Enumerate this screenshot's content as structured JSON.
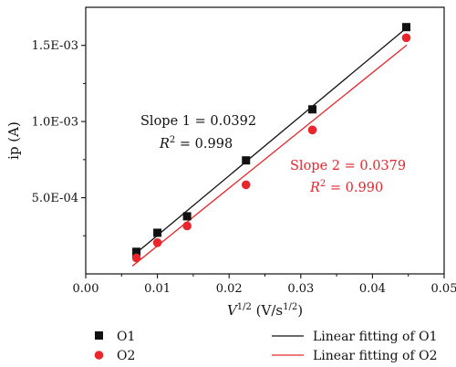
{
  "chart_data": {
    "type": "scatter",
    "xlabel": "V1/2 (V/s1/2)",
    "xlabel_parts": {
      "base": "V",
      "sup": "1/2",
      "unit_open": " (V/s",
      "unit_sup": "1/2",
      "unit_close": ")"
    },
    "ylabel": "ip (A)",
    "xlim": [
      0.0,
      0.05
    ],
    "ylim": [
      0.0,
      0.00175
    ],
    "x_ticks": [
      0.0,
      0.01,
      0.02,
      0.03,
      0.04,
      0.05
    ],
    "x_tick_labels": [
      "0.00",
      "0.01",
      "0.02",
      "0.03",
      "0.04",
      "0.05"
    ],
    "y_ticks": [
      0.0005,
      0.001,
      0.0015
    ],
    "y_tick_labels": [
      "5.0E-04",
      "1.0E-03",
      "1.5E-03"
    ],
    "grid": false,
    "legend_position": "bottom",
    "series": [
      {
        "name": "O1",
        "marker": "square",
        "color": "#111111",
        "x": [
          0.00707,
          0.01,
          0.01414,
          0.02236,
          0.03162,
          0.04472
        ],
        "y": [
          0.000145,
          0.00027,
          0.000378,
          0.000745,
          0.00108,
          0.00162
        ]
      },
      {
        "name": "O2",
        "marker": "circle",
        "color": "#e8262b",
        "x": [
          0.00707,
          0.01,
          0.01414,
          0.02236,
          0.03162,
          0.04472
        ],
        "y": [
          0.000105,
          0.000205,
          0.000315,
          0.000585,
          0.000945,
          0.00155
        ]
      }
    ],
    "fits": [
      {
        "name": "Linear fitting of O1",
        "color": "#111111",
        "slope": 0.0392,
        "intercept": -0.0001395,
        "x_range": [
          0.0065,
          0.0448
        ],
        "slope_label": "Slope 1 = 0.0392",
        "r2_value": "0.998"
      },
      {
        "name": "Linear fitting of O2",
        "color": "#e8262b",
        "slope": 0.0379,
        "intercept": -0.000195,
        "x_range": [
          0.0065,
          0.0448
        ],
        "slope_label": "Slope 2 = 0.0379",
        "r2_value": "0.990"
      }
    ],
    "r2_prefix": "R",
    "r2_sup": "2",
    "r2_eq": " = "
  }
}
